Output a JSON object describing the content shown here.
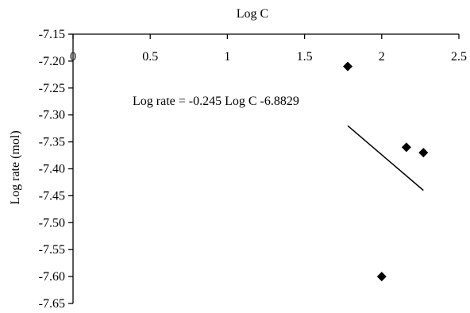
{
  "chart_data": {
    "type": "scatter",
    "title": "",
    "xlabel": "Log C",
    "ylabel": "Log rate (mol)",
    "xlim": [
      0,
      2.5
    ],
    "ylim": [
      -7.65,
      -7.15
    ],
    "x_ticks": [
      0,
      0.5,
      1,
      1.5,
      2,
      2.5
    ],
    "x_tick_labels": [
      "0",
      "0.5",
      "1",
      "1.5",
      "2",
      "2.5"
    ],
    "y_ticks": [
      -7.15,
      -7.2,
      -7.25,
      -7.3,
      -7.35,
      -7.4,
      -7.45,
      -7.5,
      -7.55,
      -7.6,
      -7.65
    ],
    "y_tick_labels": [
      "-7.15",
      "-7.20",
      "-7.25",
      "-7.30",
      "-7.35",
      "-7.40",
      "-7.45",
      "-7.50",
      "-7.55",
      "-7.60",
      "-7.65"
    ],
    "x_axis_position": "top",
    "grid": false,
    "legend": "none",
    "marker": "diamond",
    "marker_color": "#000000",
    "points": [
      {
        "x": 1.78,
        "y": -7.21
      },
      {
        "x": 2.0,
        "y": -7.6
      },
      {
        "x": 2.16,
        "y": -7.36
      },
      {
        "x": 2.27,
        "y": -7.37
      }
    ],
    "trendline": {
      "x": [
        1.78,
        2.27
      ],
      "y": [
        -7.32,
        -7.44
      ]
    },
    "annotation": "Log rate = -0.245 Log C -6.8829"
  }
}
